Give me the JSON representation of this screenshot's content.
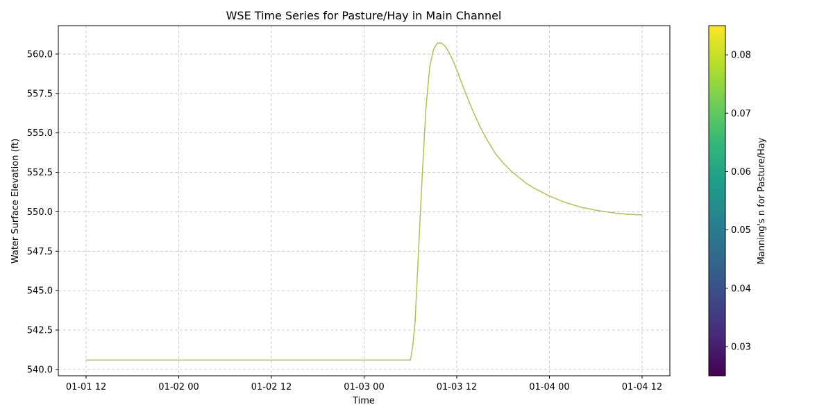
{
  "chart_data": {
    "type": "line",
    "title": "WSE Time Series for Pasture/Hay in Main Channel",
    "xlabel": "Time",
    "ylabel": "Water Surface Elevation (ft)",
    "x_ticks": [
      "01-01 12",
      "01-02 00",
      "01-02 12",
      "01-03 00",
      "01-03 12",
      "01-04 00",
      "01-04 12"
    ],
    "y_ticks": [
      "540.0",
      "542.5",
      "545.0",
      "547.5",
      "550.0",
      "552.5",
      "555.0",
      "557.5",
      "560.0"
    ],
    "xlim_hours": [
      -3.6,
      75.6
    ],
    "ylim": [
      539.6,
      561.8
    ],
    "x_unit": "hours after 01-01 12",
    "grid": true,
    "series": [
      {
        "color": "#aac650",
        "x_hours": [
          0,
          6,
          12,
          18,
          24,
          30,
          36,
          40,
          42,
          42.3,
          42.6,
          43.0,
          43.5,
          44.0,
          44.5,
          45.0,
          45.5,
          46.0,
          46.5,
          47.0,
          47.5,
          48.0,
          49.0,
          50.0,
          51.0,
          52.0,
          53.0,
          54.0,
          55.0,
          56.0,
          57.0,
          58.0,
          60.0,
          62.0,
          64.0,
          66.0,
          68.0,
          70.0,
          72.0
        ],
        "y": [
          540.6,
          540.6,
          540.6,
          540.6,
          540.6,
          540.6,
          540.6,
          540.6,
          540.6,
          541.5,
          543.0,
          547.0,
          552.0,
          556.5,
          559.2,
          560.3,
          560.7,
          560.7,
          560.5,
          560.1,
          559.6,
          559.0,
          557.7,
          556.5,
          555.4,
          554.5,
          553.7,
          553.1,
          552.6,
          552.2,
          551.8,
          551.5,
          551.0,
          550.6,
          550.3,
          550.1,
          549.95,
          549.85,
          549.8
        ]
      }
    ]
  },
  "colorbar": {
    "label": "Manning's n for Pasture/Hay",
    "ticks": [
      "0.03",
      "0.04",
      "0.05",
      "0.06",
      "0.07",
      "0.08"
    ],
    "range": [
      0.025,
      0.085
    ],
    "colors": [
      "#440154",
      "#482878",
      "#3e4989",
      "#31688e",
      "#26828e",
      "#1f9e89",
      "#35b779",
      "#6ece58",
      "#b5de2b",
      "#fde725"
    ]
  }
}
